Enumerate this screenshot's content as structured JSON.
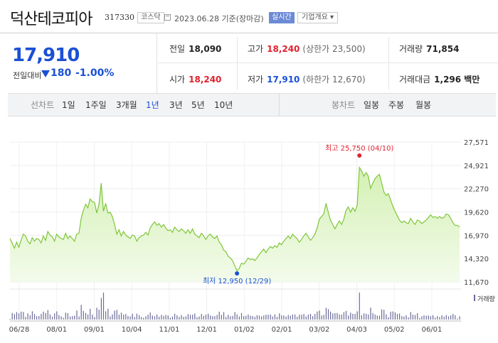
{
  "header": {
    "name": "덕산테코피아",
    "code": "317330",
    "market": "코스닥",
    "date": "2023.06.28 기준(장마감)",
    "realtime_label": "실시간",
    "overview_label": "기업개요 ▾"
  },
  "summary": {
    "price": "17,910",
    "diff_label": "전일대비",
    "diff_value": "180",
    "diff_pct": "-1.00%",
    "direction": "down"
  },
  "stats": {
    "prev_label": "전일",
    "prev_value": "18,090",
    "high_label": "고가",
    "high_value": "18,240",
    "upper_limit": "(상한가 23,500)",
    "volume_label": "거래량",
    "volume_value": "71,854",
    "open_label": "시가",
    "open_value": "18,240",
    "low_label": "저가",
    "low_value": "17,910",
    "lower_limit": "(하한가 12,670)",
    "amount_label": "거래대금",
    "amount_value": "1,296 백만"
  },
  "tabs": {
    "line_label": "선차트",
    "line_periods": [
      "1일",
      "1주일",
      "3개월",
      "1년",
      "3년",
      "5년",
      "10년"
    ],
    "active_period": "1년",
    "candle_label": "봉차트",
    "candle_periods": [
      "일봉",
      "주봉",
      "월봉"
    ]
  },
  "colors": {
    "up": "#e0222f",
    "down": "#1a50d6",
    "line": "#7fc63a",
    "area_top": "#d4f0b4",
    "area_bottom": "#f3fbeb"
  },
  "chart_data": {
    "type": "area",
    "ylim": [
      11670,
      27571
    ],
    "y_ticks": [
      "27,571",
      "24,921",
      "22,270",
      "19,620",
      "16,970",
      "14,320",
      "11,670"
    ],
    "x_ticks": [
      "06/28",
      "08/01",
      "09/01",
      "10/04",
      "11/01",
      "12/01",
      "01/02",
      "02/01",
      "03/02",
      "04/03",
      "05/02",
      "06/01"
    ],
    "max_label": "최고 25,750 (04/10)",
    "min_label": "최저 12,950 (12/29)",
    "volume_label": "거래량",
    "series": [
      {
        "values": [
          16600,
          16100,
          15500,
          16200,
          15600,
          16400,
          17100,
          16900,
          16300,
          16000,
          16700,
          16300,
          16600,
          16500,
          16100,
          16900,
          16400,
          17400,
          17000,
          16800,
          16300,
          17100,
          16800,
          16600,
          16500,
          17200,
          16600,
          16900,
          16600,
          16300,
          17100,
          17200,
          18900,
          19800,
          20500,
          20100,
          21100,
          20800,
          20700,
          19500,
          20500,
          22900,
          19700,
          20600,
          19500,
          19600,
          19100,
          18200,
          17100,
          17600,
          16900,
          17400,
          17000,
          16800,
          16600,
          17000,
          16900,
          16300,
          16700,
          16900,
          17000,
          17300,
          17000,
          17800,
          18200,
          18500,
          18100,
          18300,
          17900,
          18200,
          17800,
          17500,
          17600,
          17300,
          17900,
          17600,
          17400,
          17700,
          17500,
          17200,
          17600,
          17200,
          17700,
          17100,
          16900,
          16700,
          17200,
          16900,
          16500,
          16900,
          17100,
          16800,
          16600,
          16900,
          16200,
          15900,
          15300,
          15100,
          14600,
          14400,
          14100,
          13500,
          12950,
          13200,
          13800,
          13700,
          14000,
          14400,
          14200,
          14300,
          14100,
          14400,
          14800,
          15100,
          15400,
          15000,
          15400,
          15700,
          15500,
          15800,
          15600,
          16100,
          15900,
          16300,
          16600,
          16900,
          16600,
          17100,
          16800,
          16600,
          16200,
          16500,
          16900,
          17200,
          16800,
          16400,
          16700,
          17100,
          17800,
          18800,
          19100,
          19400,
          20600,
          19600,
          18700,
          18200,
          17700,
          18200,
          18600,
          18200,
          18800,
          19800,
          20200,
          19600,
          20100,
          19700,
          20400,
          24700,
          24300,
          23700,
          24100,
          23700,
          22300,
          22900,
          23400,
          23700,
          23900,
          22900,
          21900,
          21500,
          21700,
          21000,
          20300,
          19700,
          19200,
          18700,
          18400,
          18600,
          18400,
          18300,
          18900,
          18500,
          18200,
          18700,
          18600,
          18300,
          18500,
          18700,
          19000,
          19300,
          19000,
          19100,
          18900,
          19100,
          18900,
          19000,
          19400,
          19300,
          18900,
          18400,
          18100,
          18100,
          17910
        ]
      }
    ]
  }
}
